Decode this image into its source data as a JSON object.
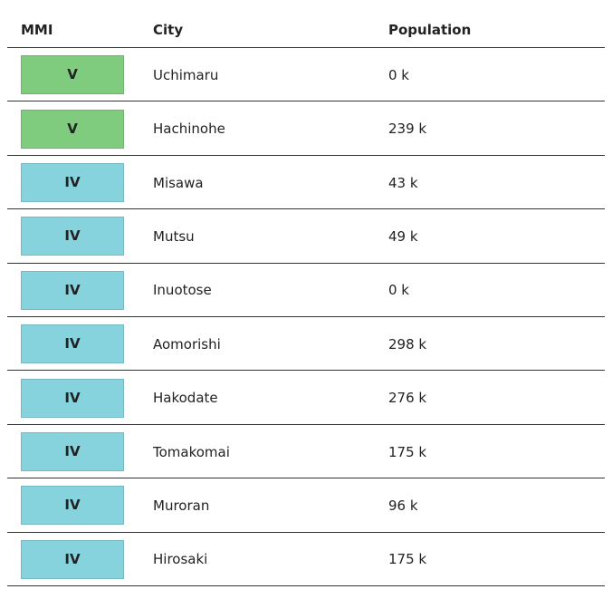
{
  "header": {
    "columns": [
      "MMI",
      "City",
      "Population"
    ]
  },
  "table": {
    "rows": [
      {
        "mmi": "V",
        "city": "Uchimaru",
        "population": "0 k",
        "color": "#7fcc7f"
      },
      {
        "mmi": "V",
        "city": "Hachinohe",
        "population": "239 k",
        "color": "#7fcc7f"
      },
      {
        "mmi": "IV",
        "city": "Misawa",
        "population": "43 k",
        "color": "#87d3dd"
      },
      {
        "mmi": "IV",
        "city": "Mutsu",
        "population": "49 k",
        "color": "#87d3dd"
      },
      {
        "mmi": "IV",
        "city": "Inuotose",
        "population": "0 k",
        "color": "#87d3dd"
      },
      {
        "mmi": "IV",
        "city": "Aomorishi",
        "population": "298 k",
        "color": "#87d3dd"
      },
      {
        "mmi": "IV",
        "city": "Hakodate",
        "population": "276 k",
        "color": "#87d3dd"
      },
      {
        "mmi": "IV",
        "city": "Tomakomai",
        "population": "175 k",
        "color": "#87d3dd"
      },
      {
        "mmi": "IV",
        "city": "Muroran",
        "population": "96 k",
        "color": "#87d3dd"
      },
      {
        "mmi": "IV",
        "city": "Hirosaki",
        "population": "175 k",
        "color": "#87d3dd"
      }
    ]
  }
}
